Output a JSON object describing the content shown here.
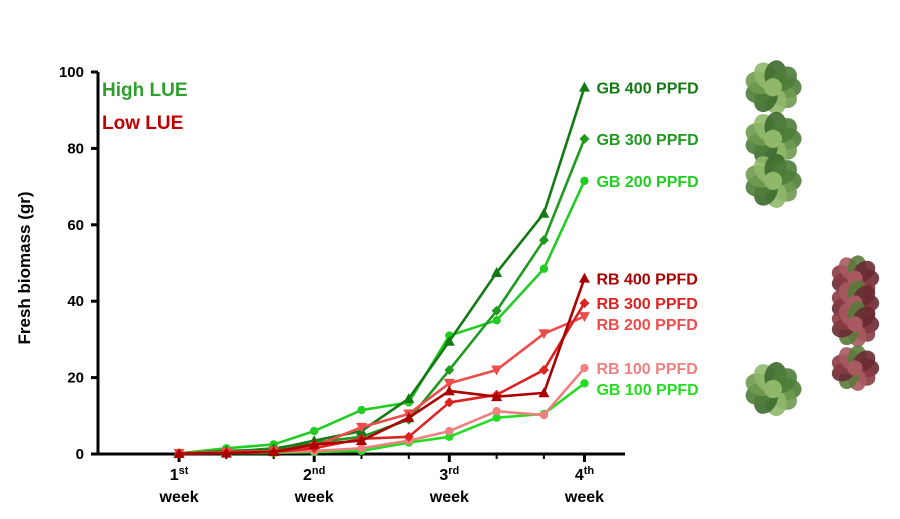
{
  "chart_data": {
    "type": "line",
    "ylabel": "Fresh biomass (gr)",
    "ylim": [
      0,
      100
    ],
    "yticks": [
      0,
      20,
      40,
      60,
      80,
      100
    ],
    "xlim": [
      0.4,
      4.3
    ],
    "xticks": [
      {
        "x": 1,
        "main": "1",
        "sup": "st",
        "sub": "week"
      },
      {
        "x": 2,
        "main": "2",
        "sup": "nd",
        "sub": "week"
      },
      {
        "x": 3,
        "main": "3",
        "sup": "rd",
        "sub": "week"
      },
      {
        "x": 4,
        "main": "4",
        "sup": "th",
        "sub": "week"
      }
    ],
    "minor_ticks": [
      1.35,
      1.7,
      2.35,
      2.7,
      3.35,
      3.7
    ],
    "legend": [
      {
        "label": "High LUE",
        "color": "#2ea02e"
      },
      {
        "label": "Low LUE",
        "color": "#c00000"
      }
    ],
    "series": [
      {
        "name": "GB 100 PPFD",
        "color": "#22dd22",
        "marker": "circle",
        "x": [
          1,
          1.35,
          1.7,
          2,
          2.35,
          2.7,
          3,
          3.35,
          3.7,
          4
        ],
        "y": [
          0.1,
          0.2,
          0.3,
          0.5,
          0.8,
          3,
          4.5,
          9.5,
          10.5,
          18.5
        ]
      },
      {
        "name": "RB 100 PPFD",
        "color": "#f08080",
        "marker": "circle",
        "x": [
          1,
          1.35,
          1.7,
          2,
          2.35,
          2.7,
          3,
          3.35,
          3.7,
          4
        ],
        "y": [
          0.2,
          0.3,
          0.5,
          0.8,
          1.5,
          3.5,
          6,
          11.2,
          10.2,
          22.5
        ]
      },
      {
        "name": "GB 200 PPFD",
        "color": "#22cc22",
        "marker": "circle",
        "x": [
          1,
          1.35,
          1.7,
          2,
          2.35,
          2.7,
          3,
          3.35,
          3.7,
          4
        ],
        "y": [
          0.2,
          1.5,
          2.5,
          6,
          11.5,
          13.5,
          31,
          35,
          48.5,
          71.5
        ]
      },
      {
        "name": "GB 300 PPFD",
        "color": "#1f9a1f",
        "marker": "diamond",
        "x": [
          1,
          1.35,
          1.7,
          2,
          2.35,
          2.7,
          3,
          3.35,
          3.7,
          4
        ],
        "y": [
          0.1,
          0.5,
          1.5,
          3,
          4.5,
          9,
          22,
          37.5,
          56,
          82.5
        ]
      },
      {
        "name": "GB 400 PPFD",
        "color": "#137a13",
        "marker": "triangle-up",
        "x": [
          1,
          1.35,
          1.7,
          2,
          2.35,
          2.7,
          3,
          3.35,
          3.7,
          4
        ],
        "y": [
          0.1,
          0.8,
          1.2,
          3.5,
          6,
          14.5,
          29.5,
          47.5,
          63,
          96
        ]
      },
      {
        "name": "RB 200 PPFD",
        "color": "#ee4b4b",
        "marker": "triangle-down",
        "x": [
          1,
          1.35,
          1.7,
          2,
          2.35,
          2.7,
          3,
          3.35,
          3.7,
          4
        ],
        "y": [
          0.2,
          0.5,
          0.8,
          2,
          7,
          10.5,
          18.5,
          22,
          31.5,
          36
        ]
      },
      {
        "name": "RB 300 PPFD",
        "color": "#dd2222",
        "marker": "diamond",
        "x": [
          1,
          1.35,
          1.7,
          2,
          2.35,
          2.7,
          3,
          3.35,
          3.7,
          4
        ],
        "y": [
          0.1,
          0.3,
          0.5,
          1.5,
          4,
          4.5,
          13.5,
          15.5,
          22,
          39.5
        ]
      },
      {
        "name": "RB 400 PPFD",
        "color": "#aa0000",
        "marker": "triangle-up",
        "x": [
          1,
          1.35,
          1.7,
          2,
          2.35,
          2.7,
          3,
          3.35,
          3.7,
          4
        ],
        "y": [
          0.1,
          0.2,
          0.6,
          2.5,
          3.5,
          9.5,
          16.5,
          15,
          16,
          46
        ]
      }
    ],
    "labels_order": [
      "GB 400 PPFD",
      "GB 300 PPFD",
      "GB 200 PPFD",
      "RB 400 PPFD",
      "RB 300 PPFD",
      "RB 200 PPFD",
      "RB 100 PPFD",
      "GB 100 PPFD"
    ],
    "photos": [
      {
        "type": "green",
        "anchor": "GB 400 PPFD"
      },
      {
        "type": "green",
        "anchor": "GB 300 PPFD"
      },
      {
        "type": "green",
        "anchor": "GB 200 PPFD"
      },
      {
        "type": "red",
        "anchor": "RB 400 PPFD"
      },
      {
        "type": "red",
        "anchor": "RB 300 PPFD"
      },
      {
        "type": "red",
        "anchor": "RB 200 PPFD"
      },
      {
        "type": "red",
        "anchor": "RB 100 PPFD"
      },
      {
        "type": "green",
        "anchor": "GB 100 PPFD"
      }
    ]
  }
}
